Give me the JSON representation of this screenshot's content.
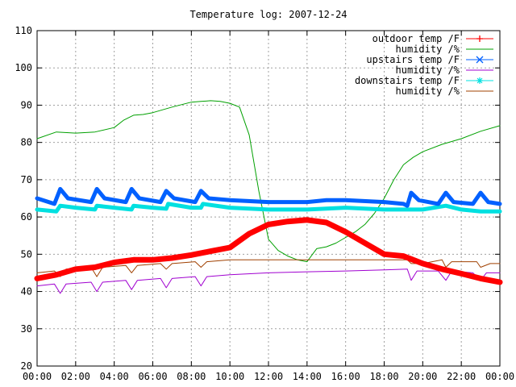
{
  "chart_data": {
    "type": "line",
    "title": "Temperature log: 2007-12-24",
    "xlabel": "",
    "ylabel": "",
    "xlim": [
      0,
      24
    ],
    "ylim": [
      20,
      110
    ],
    "grid": true,
    "legend_position": "top-right",
    "x_ticks": [
      "00:00",
      "02:00",
      "04:00",
      "06:00",
      "08:00",
      "10:00",
      "12:00",
      "14:00",
      "16:00",
      "18:00",
      "20:00",
      "22:00",
      "00:00"
    ],
    "y_ticks": [
      "20",
      "30",
      "40",
      "50",
      "60",
      "70",
      "80",
      "90",
      "100",
      "110"
    ],
    "y_tick_values": [
      20,
      30,
      40,
      50,
      60,
      70,
      80,
      90,
      100,
      110
    ],
    "series": [
      {
        "name": "outdoor temp /F",
        "color": "#ff0000",
        "marker": "plus",
        "width": 7,
        "x": [
          0,
          1,
          2,
          3,
          4,
          5,
          6,
          7,
          8,
          9,
          10,
          11,
          12,
          13,
          14,
          15,
          16,
          17,
          18,
          19,
          20,
          21,
          22,
          23,
          24
        ],
        "values": [
          43.5,
          44.5,
          46,
          46.5,
          47.8,
          48.5,
          48.5,
          49,
          49.8,
          50.8,
          51.8,
          55.5,
          58,
          58.8,
          59.2,
          58.5,
          56,
          53,
          50,
          49.5,
          47.5,
          46,
          44.8,
          43.5,
          42.5
        ]
      },
      {
        "name": "humidity /%",
        "color": "#00a000",
        "marker": "none",
        "width": 1,
        "x": [
          0,
          1,
          2,
          3,
          4,
          4.5,
          5,
          5.5,
          6,
          7,
          8,
          8.5,
          9,
          9.5,
          10,
          10.5,
          11,
          11.5,
          12,
          12.5,
          13,
          13.5,
          14,
          14.5,
          15,
          15.5,
          16,
          16.5,
          17,
          17.5,
          18,
          18.5,
          19,
          19.5,
          20,
          21,
          22,
          23,
          24
        ],
        "values": [
          81,
          82.8,
          82.5,
          82.8,
          84,
          86,
          87.3,
          87.5,
          88,
          89.5,
          90.8,
          91,
          91.2,
          91,
          90.5,
          89.5,
          82,
          67,
          54,
          51,
          49.5,
          48.5,
          48,
          51.5,
          52,
          53,
          54.5,
          56,
          58,
          61,
          65,
          70,
          74,
          76,
          77.5,
          79.5,
          81,
          83,
          84.5
        ]
      },
      {
        "name": "upstairs temp /F",
        "color": "#0060ff",
        "marker": "x",
        "width": 5,
        "x": [
          0,
          0.9,
          1.2,
          1.6,
          2.8,
          3.1,
          3.5,
          4.6,
          4.9,
          5.3,
          6.4,
          6.7,
          7.1,
          8.2,
          8.5,
          8.9,
          10,
          12,
          14,
          15,
          16,
          18,
          19,
          19.2,
          19.4,
          19.8,
          20.8,
          21.2,
          21.6,
          22.6,
          23,
          23.4,
          24
        ],
        "values": [
          65,
          63.5,
          67.5,
          65,
          64,
          67.5,
          65,
          64,
          67.5,
          65,
          64,
          67,
          65,
          64,
          67,
          65,
          64.5,
          64,
          64,
          64.5,
          64.5,
          64,
          63.5,
          63,
          66.5,
          64.5,
          63.5,
          66.5,
          64,
          63.5,
          66.5,
          64,
          63.5
        ]
      },
      {
        "name": "humidity /%",
        "color": "#a000d0",
        "marker": "none",
        "width": 1,
        "x": [
          0,
          0.9,
          1.2,
          1.5,
          2.8,
          3.1,
          3.4,
          4.6,
          4.9,
          5.2,
          6.4,
          6.7,
          7,
          8.2,
          8.5,
          8.8,
          10,
          12,
          14,
          16,
          18,
          19.2,
          19.4,
          19.7,
          20.8,
          21.2,
          21.5,
          22.6,
          23,
          23.3,
          24
        ],
        "values": [
          41.5,
          42,
          39.5,
          42,
          42.5,
          40,
          42.5,
          43,
          40.5,
          43,
          43.5,
          41,
          43.5,
          44,
          41.5,
          44,
          44.5,
          45,
          45.3,
          45.5,
          45.8,
          46,
          43,
          45.5,
          45.5,
          43,
          45.5,
          45,
          43,
          45,
          45
        ]
      },
      {
        "name": "downstairs temp /F",
        "color": "#00e0e0",
        "marker": "star",
        "width": 5,
        "x": [
          0,
          1,
          1.2,
          2,
          3,
          3.1,
          4,
          4.9,
          5,
          6,
          6.7,
          6.8,
          8,
          8.5,
          8.6,
          10,
          12,
          14,
          16,
          18,
          20,
          21.2,
          22,
          23,
          24
        ],
        "values": [
          62,
          61.5,
          63,
          62.5,
          62,
          63,
          62.5,
          62,
          63,
          62.5,
          62.2,
          63.5,
          62.5,
          62.5,
          63.5,
          62.5,
          62,
          62,
          62.5,
          62,
          62,
          63,
          62,
          61.5,
          61.5
        ]
      },
      {
        "name": "humidity /%",
        "color": "#a04000",
        "marker": "none",
        "width": 1,
        "x": [
          0,
          0.9,
          1.2,
          1.5,
          2.8,
          3.1,
          3.4,
          4.6,
          4.9,
          5.2,
          6.4,
          6.7,
          7,
          8.2,
          8.5,
          8.8,
          10,
          12,
          14,
          16,
          18,
          19.2,
          19.4,
          20,
          21,
          21.2,
          21.5,
          22,
          22.8,
          23,
          23.5,
          24
        ],
        "values": [
          45,
          45.5,
          44,
          46,
          46.5,
          44,
          46.5,
          47,
          45,
          47,
          47.5,
          46,
          47.5,
          48,
          46.5,
          48,
          48.5,
          48.5,
          48.5,
          48.5,
          48.5,
          48.5,
          47.5,
          47.5,
          48.5,
          46.5,
          48,
          48,
          48,
          46.5,
          47.5,
          47.5
        ]
      }
    ]
  }
}
